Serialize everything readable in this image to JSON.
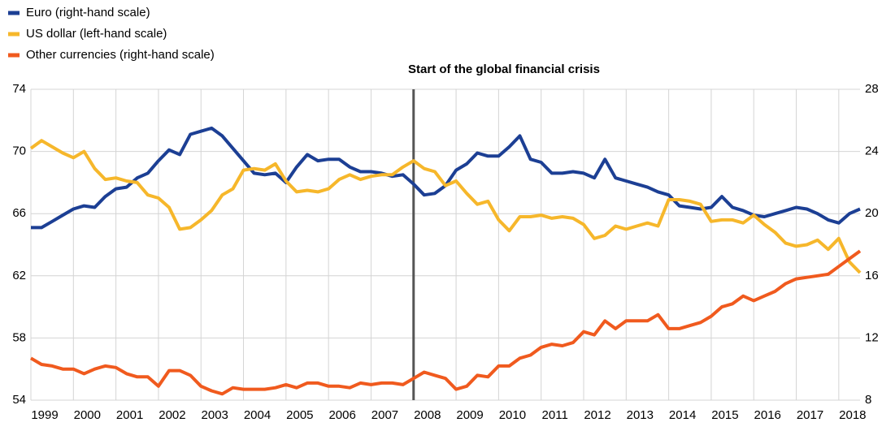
{
  "chart_data": {
    "type": "line",
    "annotation": "Start of the global financial crisis",
    "annotation_x": 2008,
    "x": [
      1999,
      1999.25,
      1999.5,
      1999.75,
      2000,
      2000.25,
      2000.5,
      2000.75,
      2001,
      2001.25,
      2001.5,
      2001.75,
      2002,
      2002.25,
      2002.5,
      2002.75,
      2003,
      2003.25,
      2003.5,
      2003.75,
      2004,
      2004.25,
      2004.5,
      2004.75,
      2005,
      2005.25,
      2005.5,
      2005.75,
      2006,
      2006.25,
      2006.5,
      2006.75,
      2007,
      2007.25,
      2007.5,
      2007.75,
      2008,
      2008.25,
      2008.5,
      2008.75,
      2009,
      2009.25,
      2009.5,
      2009.75,
      2010,
      2010.25,
      2010.5,
      2010.75,
      2011,
      2011.25,
      2011.5,
      2011.75,
      2012,
      2012.25,
      2012.5,
      2012.75,
      2013,
      2013.25,
      2013.5,
      2013.75,
      2014,
      2014.25,
      2014.5,
      2014.75,
      2015,
      2015.25,
      2015.5,
      2015.75,
      2016,
      2016.25,
      2016.5,
      2016.75,
      2017,
      2017.25,
      2017.5,
      2017.75,
      2018,
      2018.25,
      2018.5
    ],
    "xlim": [
      1999,
      2018.5
    ],
    "xticks": [
      1999,
      2000,
      2001,
      2002,
      2003,
      2004,
      2005,
      2006,
      2007,
      2008,
      2009,
      2010,
      2011,
      2012,
      2013,
      2014,
      2015,
      2016,
      2017,
      2018
    ],
    "ylim": [
      54,
      74
    ],
    "yticks": [
      54,
      58,
      62,
      66,
      70,
      74
    ],
    "y2lim": [
      8,
      28
    ],
    "y2ticks": [
      8,
      12,
      16,
      20,
      24,
      28
    ],
    "grid": true,
    "series": [
      {
        "name": "Euro (right-hand scale)",
        "color": "#1c3f94",
        "axis": "y2",
        "values": [
          19.1,
          19.1,
          19.5,
          19.9,
          20.3,
          20.5,
          20.4,
          21.1,
          21.6,
          21.7,
          22.3,
          22.6,
          23.4,
          24.1,
          23.8,
          25.1,
          25.3,
          25.5,
          25.0,
          24.2,
          23.4,
          22.6,
          22.5,
          22.6,
          22.0,
          23.0,
          23.8,
          23.4,
          23.5,
          23.5,
          23.0,
          22.7,
          22.7,
          22.6,
          22.4,
          22.5,
          21.9,
          21.2,
          21.3,
          21.8,
          22.8,
          23.2,
          23.9,
          23.7,
          23.7,
          24.3,
          25.0,
          23.5,
          23.3,
          22.6,
          22.6,
          22.7,
          22.6,
          22.3,
          23.5,
          22.3,
          22.1,
          21.9,
          21.7,
          21.4,
          21.2,
          20.5,
          20.4,
          20.3,
          20.4,
          21.1,
          20.4,
          20.2,
          19.9,
          19.8,
          20.0,
          20.2,
          20.4,
          20.3,
          20.0,
          19.6,
          19.4,
          20.0,
          20.3
        ]
      },
      {
        "name": "US dollar (left-hand scale)",
        "color": "#f6b72b",
        "values": [
          70.2,
          70.7,
          70.3,
          69.9,
          69.6,
          70.0,
          68.9,
          68.2,
          68.3,
          68.1,
          68.0,
          67.2,
          67.0,
          66.4,
          65.0,
          65.1,
          65.6,
          66.2,
          67.2,
          67.6,
          68.8,
          68.9,
          68.8,
          69.2,
          68.1,
          67.4,
          67.5,
          67.4,
          67.6,
          68.2,
          68.5,
          68.2,
          68.4,
          68.5,
          68.5,
          69.0,
          69.4,
          68.9,
          68.7,
          67.8,
          68.1,
          67.3,
          66.6,
          66.8,
          65.6,
          64.9,
          65.8,
          65.8,
          65.9,
          65.7,
          65.8,
          65.7,
          65.3,
          64.4,
          64.6,
          65.2,
          65.0,
          65.2,
          65.4,
          65.2,
          66.9,
          66.9,
          66.8,
          66.6,
          65.5,
          65.6,
          65.6,
          65.4,
          65.9,
          65.3,
          64.8,
          64.1,
          63.9,
          64.0,
          64.3,
          63.7,
          64.4,
          62.9,
          62.2
        ]
      },
      {
        "name": "Other currencies (right-hand scale)",
        "color": "#f05a1e",
        "axis": "y2",
        "values": [
          10.7,
          10.3,
          10.2,
          10.0,
          10.0,
          9.7,
          10.0,
          10.2,
          10.1,
          9.7,
          9.5,
          9.5,
          8.9,
          9.9,
          9.9,
          9.6,
          8.9,
          8.6,
          8.4,
          8.8,
          8.7,
          8.7,
          8.7,
          8.8,
          9.0,
          8.8,
          9.1,
          9.1,
          8.9,
          8.9,
          8.8,
          9.1,
          9.0,
          9.1,
          9.1,
          9.0,
          9.4,
          9.8,
          9.6,
          9.4,
          8.7,
          8.9,
          9.6,
          9.5,
          10.2,
          10.2,
          10.7,
          10.9,
          11.4,
          11.6,
          11.5,
          11.7,
          12.4,
          12.2,
          13.1,
          12.6,
          13.1,
          13.1,
          13.1,
          13.5,
          12.6,
          12.6,
          12.8,
          13.0,
          13.4,
          14.0,
          14.2,
          14.7,
          14.4,
          14.7,
          15.0,
          15.5,
          15.8,
          15.9,
          16.0,
          16.1,
          16.6,
          17.1,
          17.6
        ]
      }
    ]
  }
}
